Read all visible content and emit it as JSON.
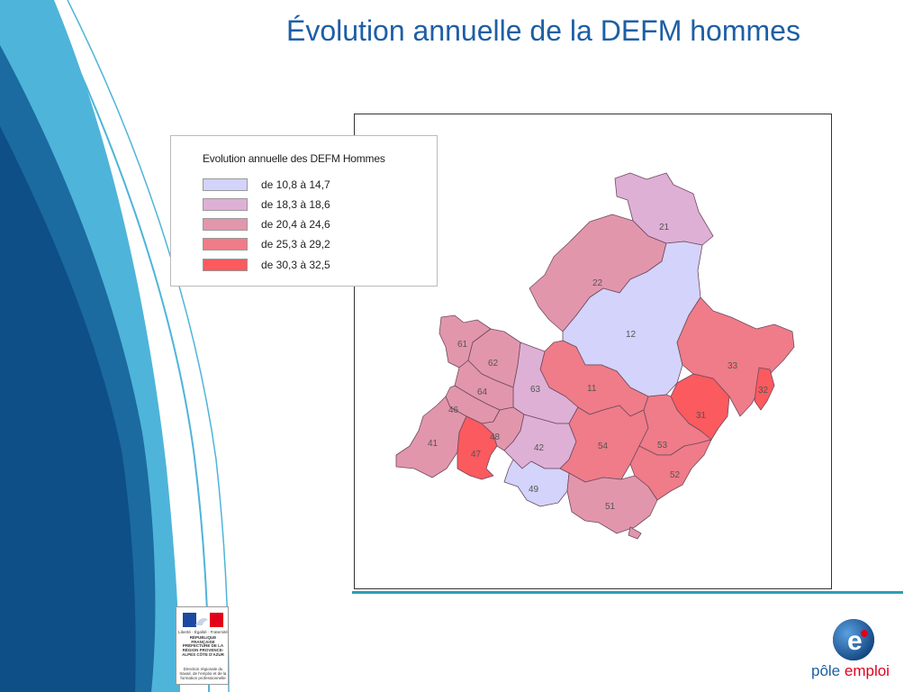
{
  "title": "Évolution annuelle de la DEFM hommes",
  "legend": {
    "title": "Evolution annuelle des DEFM Hommes",
    "classes": [
      {
        "label": "de 10,8 à 14,7",
        "color": "#d3d3fb"
      },
      {
        "label": "de 18,3 à 18,6",
        "color": "#deb0d6"
      },
      {
        "label": "de 20,4 à 24,6",
        "color": "#e296ac"
      },
      {
        "label": "de 25,3 à 29,2",
        "color": "#ef7c88"
      },
      {
        "label": "de 30,3 à 32,5",
        "color": "#fb5a5e"
      }
    ]
  },
  "areas": [
    {
      "code": "21",
      "class": 1
    },
    {
      "code": "22",
      "class": 2
    },
    {
      "code": "12",
      "class": 0
    },
    {
      "code": "33",
      "class": 3
    },
    {
      "code": "32",
      "class": 4
    },
    {
      "code": "31",
      "class": 4
    },
    {
      "code": "11",
      "class": 3
    },
    {
      "code": "63",
      "class": 1
    },
    {
      "code": "61",
      "class": 2
    },
    {
      "code": "62",
      "class": 2
    },
    {
      "code": "64",
      "class": 2
    },
    {
      "code": "46",
      "class": 2
    },
    {
      "code": "41",
      "class": 2
    },
    {
      "code": "47",
      "class": 4
    },
    {
      "code": "48",
      "class": 2
    },
    {
      "code": "42",
      "class": 1
    },
    {
      "code": "49",
      "class": 0
    },
    {
      "code": "54",
      "class": 3
    },
    {
      "code": "53",
      "class": 3
    },
    {
      "code": "52",
      "class": 3
    },
    {
      "code": "51",
      "class": 2
    }
  ],
  "prefecture_logo": {
    "motto": "Liberté · Égalité · Fraternité",
    "republic": "RÉPUBLIQUE FRANÇAISE",
    "name": "PRÉFECTURE DE LA RÉGION PROVENCE-ALPES CÔTE D'AZUR",
    "service": "Direction régionale du travail, de l'emploi et de la formation professionnelle"
  },
  "brand": {
    "part1": "pôle ",
    "part2": "emploi",
    "logo_letter": "e"
  }
}
